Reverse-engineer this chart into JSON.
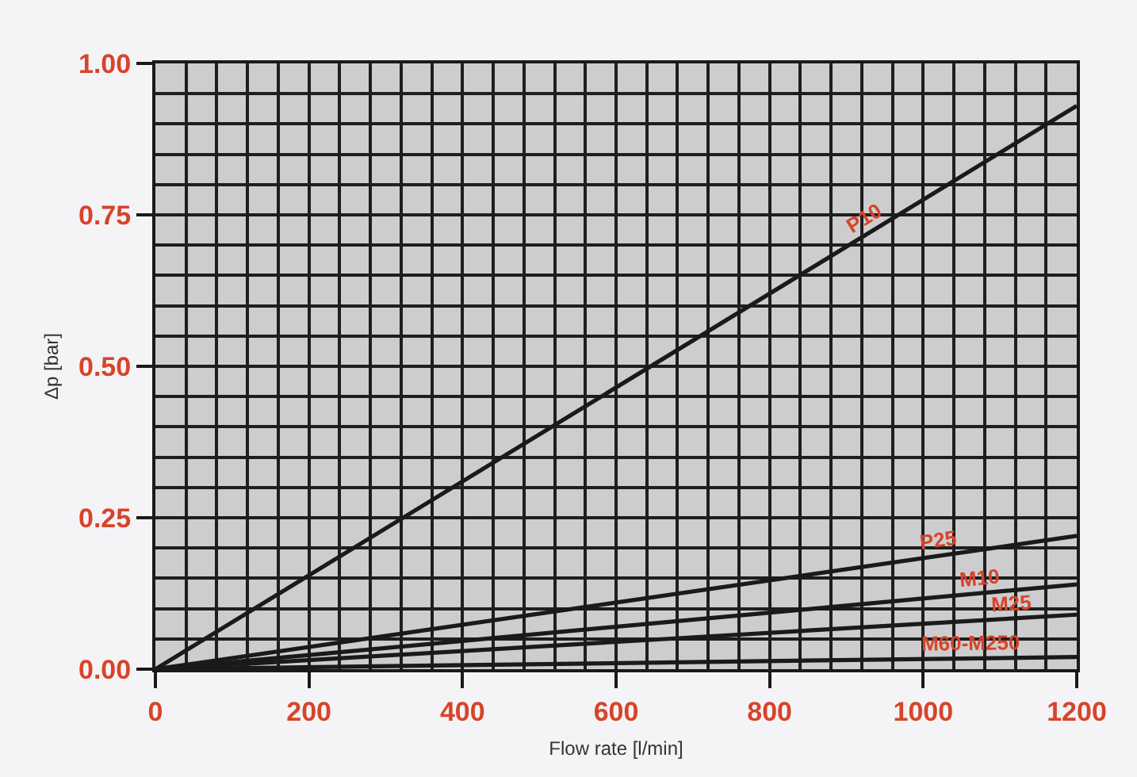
{
  "chart_data": {
    "type": "line",
    "xlabel": "Flow rate [l/min]",
    "ylabel": "Δp [bar]",
    "x": [
      0,
      1200
    ],
    "series": [
      {
        "name": "P10",
        "color": "#1a1a1a",
        "values": [
          0,
          0.93
        ]
      },
      {
        "name": "P25",
        "color": "#1a1a1a",
        "values": [
          0,
          0.22
        ]
      },
      {
        "name": "M10",
        "color": "#1a1a1a",
        "values": [
          0,
          0.14
        ]
      },
      {
        "name": "M25",
        "color": "#1a1a1a",
        "values": [
          0,
          0.09
        ]
      },
      {
        "name": "M60-M250",
        "color": "#1a1a1a",
        "values": [
          0,
          0.02
        ]
      }
    ],
    "xlim": [
      0,
      1200
    ],
    "ylim": [
      0,
      1
    ],
    "xticks": [
      0,
      200,
      400,
      600,
      800,
      1000,
      1200
    ],
    "yticks": [
      {
        "value": 0,
        "label": "0.00"
      },
      0.25,
      {
        "value": 0.5,
        "label": "0.50"
      },
      0.75,
      {
        "value": 1,
        "label": "1.00"
      }
    ],
    "grid": true,
    "line_style": "solid"
  }
}
